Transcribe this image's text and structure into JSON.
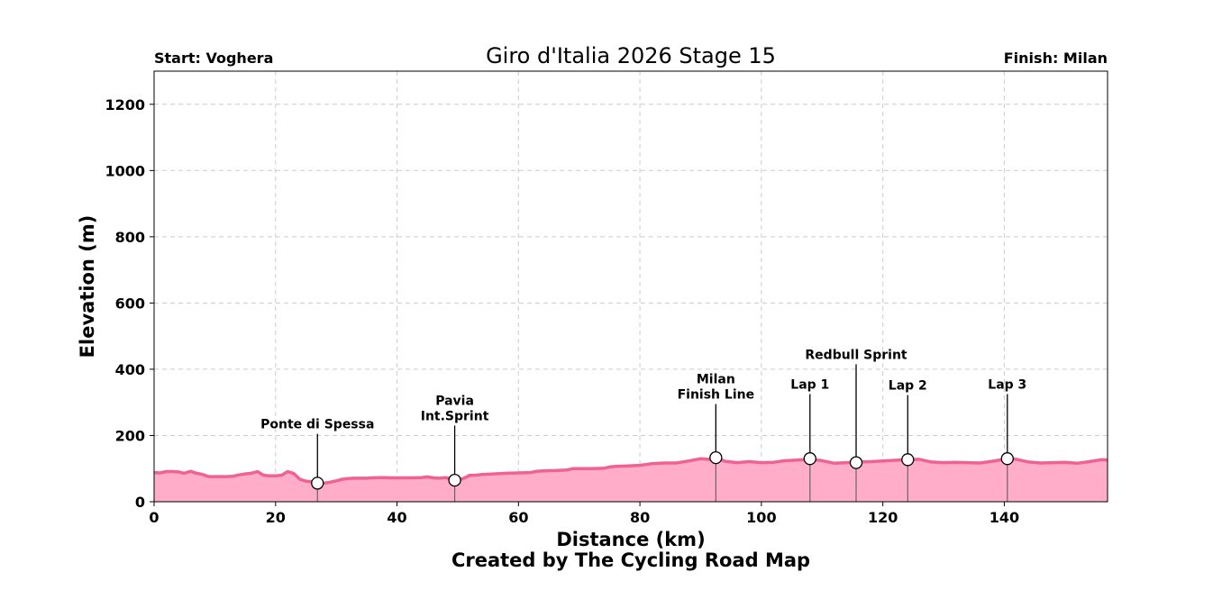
{
  "chart_data": {
    "type": "area",
    "title": "Giro d'Italia 2026 Stage 15",
    "start_label": "Start: Voghera",
    "finish_label": "Finish: Milan",
    "xlabel": "Distance (km)",
    "ylabel": "Elevation (m)",
    "credit": "Created by The Cycling Road Map",
    "xlim": [
      0,
      157
    ],
    "ylim": [
      0,
      1300
    ],
    "xticks": [
      0,
      20,
      40,
      60,
      80,
      100,
      120,
      140
    ],
    "yticks": [
      0,
      200,
      400,
      600,
      800,
      1000,
      1200
    ],
    "grid": true,
    "colors": {
      "line": "#f06292",
      "fill": "#ffadc8",
      "grid": "#cccccc"
    },
    "series": [
      {
        "x": [
          0,
          1,
          2,
          3,
          4,
          5,
          6,
          7,
          8,
          9,
          10,
          11,
          12,
          13,
          14,
          15,
          16,
          17,
          18,
          19,
          20,
          21,
          22,
          23,
          24,
          25,
          26,
          27,
          28,
          29,
          30,
          31,
          32,
          33,
          34,
          35,
          36,
          37,
          38,
          39,
          40,
          42,
          44,
          45,
          46,
          47,
          48,
          49,
          50,
          51,
          52,
          53,
          54,
          56,
          58,
          60,
          62,
          63,
          64,
          66,
          68,
          69,
          70,
          72,
          74,
          75,
          76,
          78,
          80,
          82,
          84,
          86,
          88,
          90,
          92,
          93,
          94,
          96,
          98,
          100,
          102,
          104,
          106,
          108,
          110,
          112,
          114,
          116,
          118,
          120,
          122,
          124,
          126,
          128,
          130,
          132,
          134,
          136,
          138,
          140,
          141,
          142,
          144,
          146,
          148,
          150,
          152,
          154,
          156,
          157
        ],
        "y": [
          88,
          87,
          91,
          91,
          90,
          86,
          92,
          86,
          82,
          76,
          76,
          76,
          76,
          77,
          81,
          84,
          86,
          91,
          80,
          78,
          78,
          80,
          91,
          85,
          68,
          62,
          60,
          56,
          56,
          59,
          63,
          68,
          70,
          71,
          71,
          71,
          72,
          73,
          73,
          72,
          72,
          72,
          73,
          75,
          72,
          71,
          73,
          68,
          64,
          71,
          80,
          80,
          82,
          84,
          86,
          87,
          88,
          92,
          93,
          94,
          96,
          100,
          100,
          100,
          101,
          105,
          107,
          108,
          110,
          115,
          117,
          117,
          123,
          130,
          127,
          130,
          122,
          118,
          121,
          118,
          119,
          124,
          126,
          128,
          124,
          116,
          118,
          120,
          121,
          123,
          125,
          127,
          128,
          120,
          118,
          119,
          118,
          117,
          122,
          128,
          130,
          128,
          120,
          117,
          118,
          119,
          116,
          121,
          127,
          126
        ]
      }
    ],
    "annotations": [
      {
        "x": 26.9,
        "y": 56,
        "label": "Ponte di Spessa",
        "label_y": 205
      },
      {
        "x": 49.5,
        "y": 65,
        "label": "Pavia Int.Sprint",
        "lines": [
          "Pavia",
          "Int.Sprint"
        ],
        "label_y": 230
      },
      {
        "x": 92.5,
        "y": 133,
        "label": "Milan Finish Line",
        "lines": [
          "Milan",
          "Finish Line"
        ],
        "label_y": 295
      },
      {
        "x": 108,
        "y": 130,
        "label": "Lap 1",
        "label_y": 325
      },
      {
        "x": 115.6,
        "y": 118,
        "label": "Redbull Sprint",
        "label_y": 415
      },
      {
        "x": 124.1,
        "y": 127,
        "label": "Lap 2",
        "label_y": 322
      },
      {
        "x": 140.5,
        "y": 130,
        "label": "Lap 3",
        "label_y": 325
      }
    ]
  }
}
